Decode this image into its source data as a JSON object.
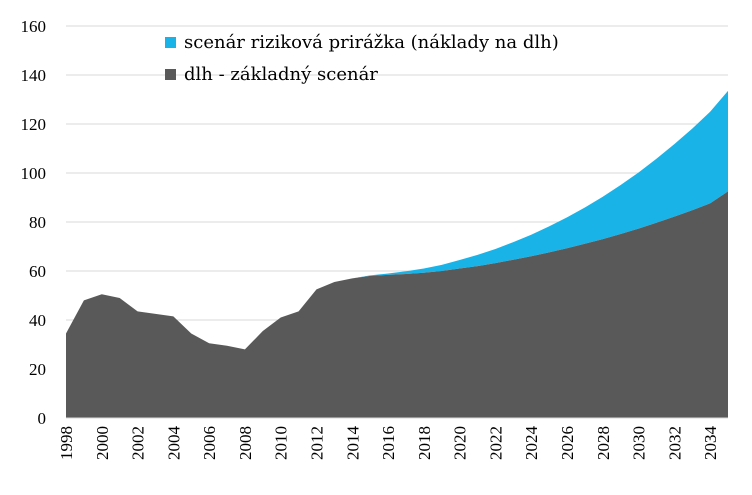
{
  "chart_data": {
    "type": "area",
    "stacked": true,
    "title": "",
    "xlabel": "",
    "ylabel": "",
    "xlim": [
      1998,
      2035
    ],
    "ylim": [
      0,
      160
    ],
    "yticks": [
      0,
      20,
      40,
      60,
      80,
      100,
      120,
      140,
      160
    ],
    "xticks": [
      1998,
      2000,
      2002,
      2004,
      2006,
      2008,
      2010,
      2012,
      2014,
      2016,
      2018,
      2020,
      2022,
      2024,
      2026,
      2028,
      2030,
      2032,
      2034
    ],
    "grid": true,
    "legend_position": "top",
    "x": [
      1998,
      1999,
      2000,
      2001,
      2002,
      2003,
      2004,
      2005,
      2006,
      2007,
      2008,
      2009,
      2010,
      2011,
      2012,
      2013,
      2014,
      2015,
      2016,
      2017,
      2018,
      2019,
      2020,
      2021,
      2022,
      2023,
      2024,
      2025,
      2026,
      2027,
      2028,
      2029,
      2030,
      2031,
      2032,
      2033,
      2034,
      2035
    ],
    "series": [
      {
        "name": "dlh - základný scenár",
        "color": "#595959",
        "values": [
          34.5,
          48,
          50.5,
          49,
          43.5,
          42.5,
          41.5,
          34.5,
          30.5,
          29.5,
          28,
          35.5,
          41,
          43.5,
          52.5,
          55.5,
          57,
          58,
          58.4,
          58.8,
          59.3,
          60,
          61,
          62,
          63.2,
          64.6,
          66,
          67.6,
          69.3,
          71.1,
          73,
          75.1,
          77.3,
          79.7,
          82.2,
          84.8,
          87.6,
          92.5
        ]
      },
      {
        "name": "scenár riziková prirážka (náklady na dlh)",
        "color": "#1ab3e8",
        "values": [
          0,
          0,
          0,
          0,
          0,
          0,
          0,
          0,
          0,
          0,
          0,
          0,
          0,
          0,
          0,
          0,
          0,
          0.2,
          0.6,
          1.1,
          1.7,
          2.5,
          3.5,
          4.6,
          5.8,
          7.2,
          8.8,
          10.6,
          12.6,
          14.8,
          17.3,
          20.0,
          22.9,
          26.1,
          29.6,
          33.3,
          37.4,
          41.0
        ]
      }
    ]
  }
}
